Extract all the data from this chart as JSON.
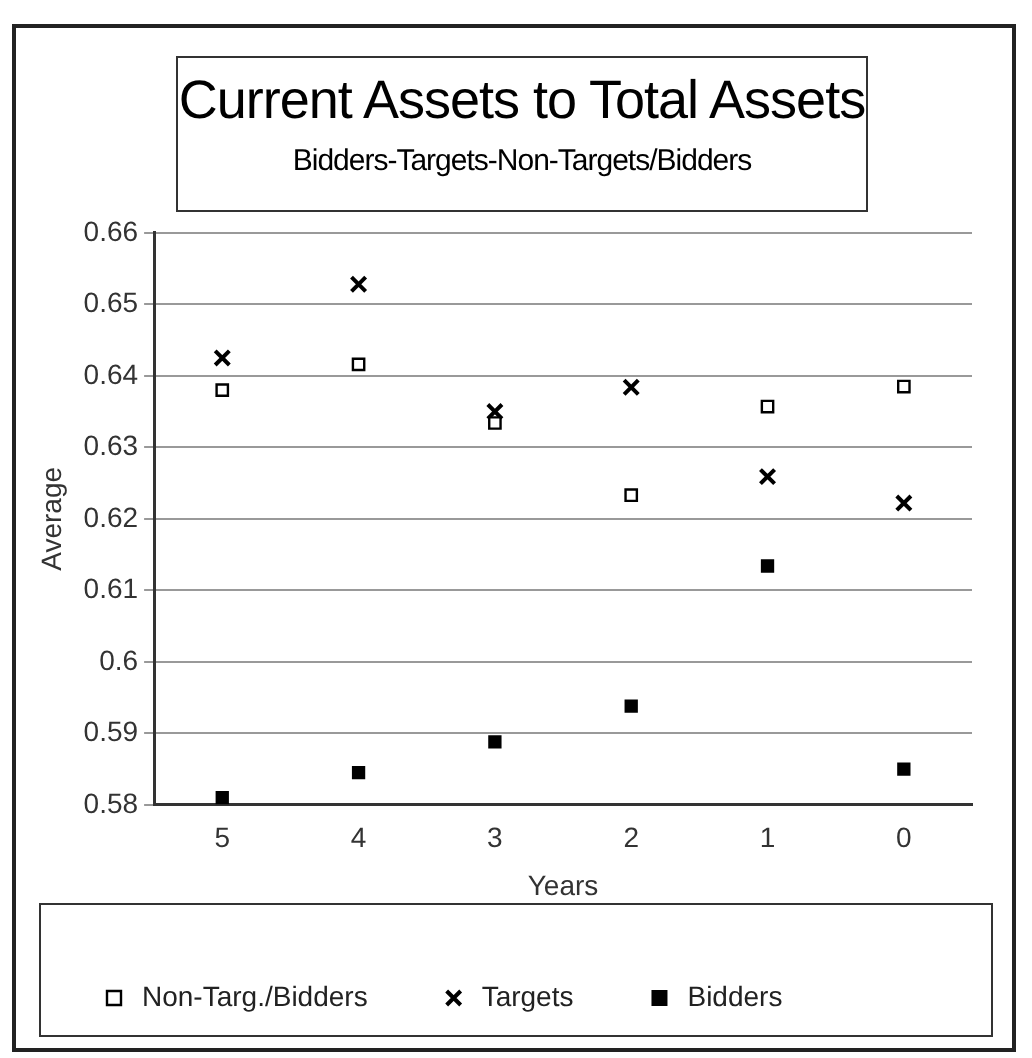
{
  "chart_data": {
    "type": "scatter",
    "title": "Current Assets to Total Assets",
    "subtitle": "Bidders-Targets-Non-Targets/Bidders",
    "xlabel": "Years",
    "ylabel": "Average",
    "categories": [
      "5",
      "4",
      "3",
      "2",
      "1",
      "0"
    ],
    "series": [
      {
        "name": "Non-Targ./Bidders",
        "color": "#000000",
        "marker": "square_open",
        "values": [
          0.638,
          0.6416,
          0.6334,
          0.6233,
          0.6357,
          0.6385
        ]
      },
      {
        "name": "Targets",
        "color": "#000000",
        "marker": "cross",
        "values": [
          0.6425,
          0.6528,
          0.635,
          0.6384,
          0.6259,
          0.6222
        ]
      },
      {
        "name": "Bidders",
        "color": "#000000",
        "marker": "square",
        "values": [
          0.581,
          0.5845,
          0.5888,
          0.5938,
          0.6134,
          0.585
        ]
      }
    ],
    "ylim": [
      0.58,
      0.66
    ],
    "yticks": [
      0.58,
      0.59,
      0.6,
      0.61,
      0.62,
      0.63,
      0.64,
      0.65,
      0.66
    ],
    "grid": "y",
    "legend": "bottom"
  }
}
